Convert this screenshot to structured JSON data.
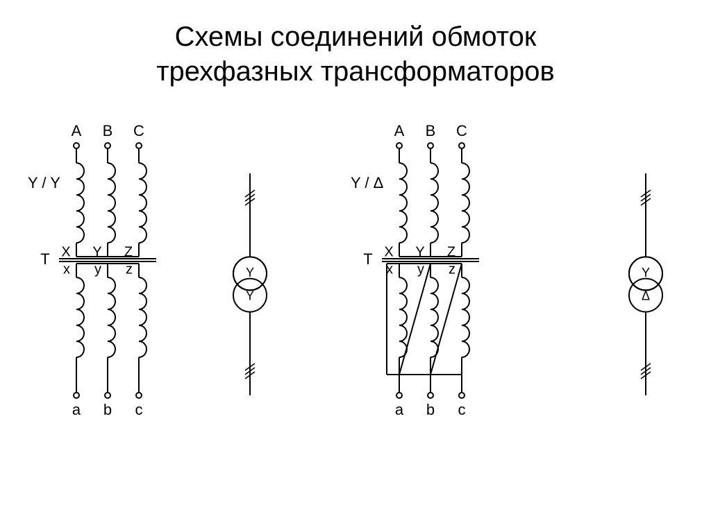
{
  "title_line1": "Схемы соединений обмоток",
  "title_line2": "трехфазных трансформаторов",
  "title_fontsize": 40,
  "background_color": "#ffffff",
  "stroke_color": "#000000",
  "stroke_width": 2,
  "label_fontsize": 22,
  "small_label_fontsize": 20,
  "left": {
    "connection_label": "Y / Y",
    "top_labels": [
      "A",
      "B",
      "C"
    ],
    "mid_top_labels": [
      "X",
      "Y",
      "Z"
    ],
    "mid_bot_labels": [
      "x",
      "y",
      "z"
    ],
    "bot_labels": [
      "a",
      "b",
      "c"
    ],
    "transformer_label": "T",
    "symbol_top": "Y",
    "symbol_bot": "Y"
  },
  "right": {
    "connection_label": "Y / Δ",
    "top_labels": [
      "A",
      "B",
      "C"
    ],
    "mid_top_labels": [
      "X",
      "Y",
      "Z"
    ],
    "mid_bot_labels": [
      "x",
      "y",
      "z"
    ],
    "bot_labels": [
      "a",
      "b",
      "c"
    ],
    "transformer_label": "T",
    "symbol_top": "Y",
    "symbol_bot": "Δ"
  },
  "coil": {
    "loops": 5,
    "loop_radius": 11,
    "loop_spacing": 19
  },
  "geometry": {
    "phase_dx": 45,
    "coil_block_height": 115,
    "terminal_r": 4,
    "core_gap": 8,
    "core_line_gap": 5
  }
}
